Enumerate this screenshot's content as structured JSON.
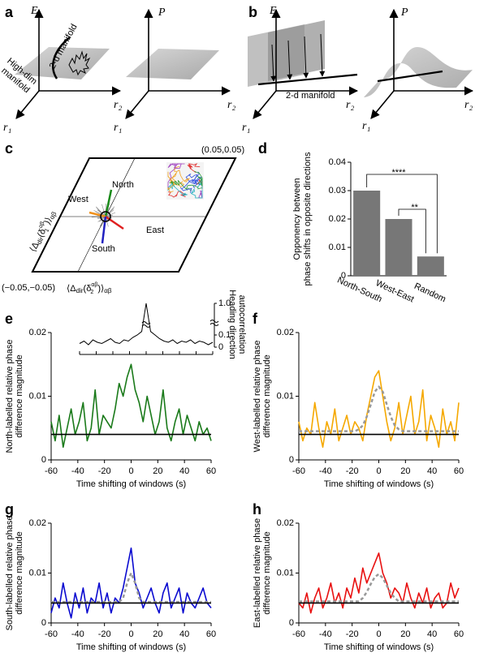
{
  "figure": {
    "a": {
      "label": "a",
      "E": "E",
      "P": "P",
      "r1": "r₁",
      "r2": "r₂",
      "manifold_2d": "2-d manifold",
      "high_dim": [
        "High-dim",
        "manifold"
      ]
    },
    "b": {
      "label": "b",
      "E": "E",
      "P": "P",
      "r1": "r₁",
      "r2": "r₂",
      "manifold_2d": "2-d manifold"
    },
    "c": {
      "label": "c",
      "corner_max": "(0.05,0.05)",
      "corner_min": "(−0.05,−0.05)",
      "directions": [
        "North",
        "West",
        "East",
        "South"
      ],
      "direction_colors": [
        "#1a8a1a",
        "#f0901a",
        "#e02020",
        "#2020c0"
      ],
      "x_label": [
        "⟨Δ",
        "dir",
        "(δ",
        "αβ",
        "2",
        ")⟩",
        "αβ"
      ],
      "y_label": [
        "⟨Δ",
        "dir",
        "(δ",
        "αβ",
        "1",
        ")⟩",
        "αβ"
      ]
    }
  },
  "chart_data": [
    {
      "type": "bar",
      "panel_label": "d",
      "ylabel": [
        "Opponency between",
        "phase shifts in opposite directions"
      ],
      "categories": [
        "North-South",
        "West-East",
        "Random"
      ],
      "values": [
        0.03,
        0.02,
        0.0068
      ],
      "color": "#777777",
      "ylim": [
        0,
        0.04
      ],
      "yticks": [
        0,
        0.01,
        0.02,
        0.03,
        0.04
      ],
      "annotations": [
        "****",
        "**"
      ]
    },
    {
      "type": "line",
      "panel_label": "e",
      "ylabel": [
        "North-labelled relative phase",
        "difference magnitude"
      ],
      "xlabel": "Time shifting of windows (s)",
      "x": [
        -60,
        -57,
        -54,
        -51,
        -48,
        -45,
        -42,
        -39,
        -36,
        -33,
        -30,
        -27,
        -24,
        -21,
        -18,
        -15,
        -12,
        -9,
        -6,
        -3,
        0,
        3,
        6,
        9,
        12,
        15,
        18,
        21,
        24,
        27,
        30,
        33,
        36,
        39,
        42,
        45,
        48,
        51,
        54,
        57,
        60
      ],
      "xlim": [
        -60,
        60
      ],
      "xticks": [
        -60,
        -40,
        -20,
        0,
        20,
        40,
        60
      ],
      "ylim": [
        0,
        0.02
      ],
      "yticks": [
        0,
        0.01,
        0.02
      ],
      "hline": 0.004,
      "hline_color": "#000000",
      "series": [
        {
          "color": "#1a7a1a",
          "values": [
            0.006,
            0.003,
            0.007,
            0.002,
            0.005,
            0.008,
            0.004,
            0.006,
            0.009,
            0.003,
            0.005,
            0.011,
            0.004,
            0.007,
            0.006,
            0.005,
            0.008,
            0.012,
            0.01,
            0.013,
            0.015,
            0.011,
            0.009,
            0.006,
            0.01,
            0.007,
            0.004,
            0.006,
            0.011,
            0.005,
            0.003,
            0.006,
            0.008,
            0.004,
            0.007,
            0.005,
            0.003,
            0.006,
            0.004,
            0.005,
            0.003
          ]
        }
      ],
      "inset": {
        "ylabel": [
          "Heading direction",
          "autocorrelation"
        ],
        "yticks": [
          0,
          0.1,
          {
            "value": 1,
            "label": "1.0"
          }
        ],
        "values": [
          0.03,
          0.05,
          0.02,
          0.06,
          0.04,
          0.03,
          0.05,
          0.07,
          0.04,
          0.03,
          0.06,
          0.05,
          0.08,
          0.1,
          0.2,
          1.0,
          0.2,
          0.1,
          0.07,
          0.05,
          0.04,
          0.06,
          0.03,
          0.05,
          0.04,
          0.06,
          0.03,
          0.05,
          0.04,
          0.02,
          0.04
        ]
      }
    },
    {
      "type": "line",
      "panel_label": "f",
      "ylabel": [
        "West-labelled relative phase",
        "difference magnitude"
      ],
      "xlabel": "Time shifting of windows (s)",
      "x": [
        -60,
        -57,
        -54,
        -51,
        -48,
        -45,
        -42,
        -39,
        -36,
        -33,
        -30,
        -27,
        -24,
        -21,
        -18,
        -15,
        -12,
        -9,
        -6,
        -3,
        0,
        3,
        6,
        9,
        12,
        15,
        18,
        21,
        24,
        27,
        30,
        33,
        36,
        39,
        42,
        45,
        48,
        51,
        54,
        57,
        60
      ],
      "xlim": [
        -60,
        60
      ],
      "xticks": [
        -60,
        -40,
        -20,
        0,
        20,
        40,
        60
      ],
      "ylim": [
        0,
        0.02
      ],
      "yticks": [
        0,
        0.01,
        0.02
      ],
      "hline": 0.004,
      "hline_color": "#000000",
      "series": [
        {
          "color": "#f5a800",
          "values": [
            0.006,
            0.003,
            0.005,
            0.004,
            0.009,
            0.005,
            0.002,
            0.006,
            0.004,
            0.008,
            0.003,
            0.005,
            0.007,
            0.004,
            0.006,
            0.005,
            0.003,
            0.007,
            0.01,
            0.013,
            0.014,
            0.01,
            0.006,
            0.003,
            0.005,
            0.009,
            0.004,
            0.007,
            0.01,
            0.004,
            0.006,
            0.011,
            0.003,
            0.007,
            0.005,
            0.002,
            0.008,
            0.004,
            0.006,
            0.003,
            0.009
          ]
        },
        {
          "color": "#999999",
          "dashed": true,
          "values": [
            0.0045,
            0.0045,
            0.0045,
            0.0045,
            0.0045,
            0.0045,
            0.0045,
            0.0045,
            0.0045,
            0.0045,
            0.0045,
            0.0045,
            0.0045,
            0.0045,
            0.0045,
            0.0048,
            0.0054,
            0.0068,
            0.0087,
            0.0107,
            0.0115,
            0.0107,
            0.0087,
            0.0068,
            0.0054,
            0.0048,
            0.0045,
            0.0045,
            0.0045,
            0.0045,
            0.0045,
            0.0045,
            0.0045,
            0.0045,
            0.0045,
            0.0045,
            0.0045,
            0.0045,
            0.0045,
            0.0045,
            0.0045
          ]
        }
      ]
    },
    {
      "type": "line",
      "panel_label": "g",
      "ylabel": [
        "South-labelled relative phase",
        "difference magnitude"
      ],
      "xlabel": "Time shifting of windows (s)",
      "x": [
        -60,
        -57,
        -54,
        -51,
        -48,
        -45,
        -42,
        -39,
        -36,
        -33,
        -30,
        -27,
        -24,
        -21,
        -18,
        -15,
        -12,
        -9,
        -6,
        -3,
        0,
        3,
        6,
        9,
        12,
        15,
        18,
        21,
        24,
        27,
        30,
        33,
        36,
        39,
        42,
        45,
        48,
        51,
        54,
        57,
        60
      ],
      "xlim": [
        -60,
        60
      ],
      "xticks": [
        -60,
        -40,
        -20,
        0,
        20,
        40,
        60
      ],
      "ylim": [
        0,
        0.02
      ],
      "yticks": [
        0,
        0.01,
        0.02
      ],
      "hline": 0.004,
      "hline_color": "#000000",
      "series": [
        {
          "color": "#0a0ad0",
          "values": [
            0.002,
            0.005,
            0.003,
            0.008,
            0.004,
            0.001,
            0.006,
            0.003,
            0.007,
            0.002,
            0.005,
            0.004,
            0.008,
            0.003,
            0.006,
            0.002,
            0.005,
            0.004,
            0.007,
            0.011,
            0.015,
            0.008,
            0.006,
            0.003,
            0.005,
            0.007,
            0.004,
            0.002,
            0.006,
            0.008,
            0.003,
            0.005,
            0.007,
            0.002,
            0.006,
            0.004,
            0.003,
            0.005,
            0.007,
            0.004,
            0.003
          ]
        },
        {
          "color": "#999999",
          "dashed": true,
          "values": [
            0.0042,
            0.0042,
            0.0042,
            0.0042,
            0.0042,
            0.0042,
            0.0042,
            0.0042,
            0.0042,
            0.0042,
            0.0042,
            0.0042,
            0.0042,
            0.0042,
            0.0042,
            0.0042,
            0.0042,
            0.0042,
            0.005,
            0.008,
            0.01,
            0.008,
            0.005,
            0.0042,
            0.0042,
            0.0042,
            0.0042,
            0.0042,
            0.0042,
            0.0042,
            0.0042,
            0.0042,
            0.0042,
            0.0042,
            0.0042,
            0.0042,
            0.0042,
            0.0042,
            0.0042,
            0.0042,
            0.0042
          ]
        }
      ]
    },
    {
      "type": "line",
      "panel_label": "h",
      "ylabel": [
        "East-labelled relative phase",
        "difference magnitude"
      ],
      "xlabel": "Time shifting of windows (s)",
      "x": [
        -60,
        -57,
        -54,
        -51,
        -48,
        -45,
        -42,
        -39,
        -36,
        -33,
        -30,
        -27,
        -24,
        -21,
        -18,
        -15,
        -12,
        -9,
        -6,
        -3,
        0,
        3,
        6,
        9,
        12,
        15,
        18,
        21,
        24,
        27,
        30,
        33,
        36,
        39,
        42,
        45,
        48,
        51,
        54,
        57,
        60
      ],
      "xlim": [
        -60,
        60
      ],
      "xticks": [
        -60,
        -40,
        -20,
        0,
        20,
        40,
        60
      ],
      "ylim": [
        0,
        0.02
      ],
      "yticks": [
        0,
        0.01,
        0.02
      ],
      "hline": 0.004,
      "hline_color": "#000000",
      "series": [
        {
          "color": "#e81010",
          "values": [
            0.004,
            0.003,
            0.006,
            0.002,
            0.005,
            0.007,
            0.003,
            0.005,
            0.008,
            0.004,
            0.006,
            0.003,
            0.007,
            0.005,
            0.009,
            0.006,
            0.011,
            0.008,
            0.01,
            0.012,
            0.014,
            0.01,
            0.008,
            0.005,
            0.007,
            0.006,
            0.004,
            0.008,
            0.005,
            0.003,
            0.006,
            0.004,
            0.007,
            0.003,
            0.005,
            0.006,
            0.003,
            0.004,
            0.008,
            0.005,
            0.007
          ]
        },
        {
          "color": "#999999",
          "dashed": true,
          "values": [
            0.0043,
            0.0043,
            0.0043,
            0.0043,
            0.0043,
            0.0043,
            0.0043,
            0.0043,
            0.0043,
            0.0043,
            0.0043,
            0.0043,
            0.0043,
            0.0043,
            0.0043,
            0.0043,
            0.005,
            0.0062,
            0.0078,
            0.0092,
            0.0098,
            0.009,
            0.0075,
            0.006,
            0.005,
            0.0043,
            0.0043,
            0.0043,
            0.0043,
            0.0043,
            0.0043,
            0.0043,
            0.0043,
            0.0043,
            0.0043,
            0.0043,
            0.0043,
            0.0043,
            0.0043,
            0.0043,
            0.0043
          ]
        }
      ]
    }
  ]
}
